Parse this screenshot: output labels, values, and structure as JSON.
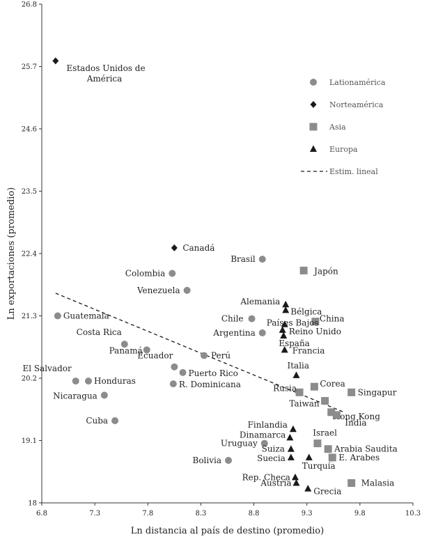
{
  "chart_data": {
    "type": "scatter",
    "title": "",
    "xlabel": "Ln distancia al país de destino (promedio)",
    "ylabel": "Ln exportaciones (promedio)",
    "xlim": [
      6.8,
      10.3
    ],
    "ylim": [
      18,
      26.8
    ],
    "xticks": [
      "6.8",
      "7.3",
      "7.8",
      "8.3",
      "8.8",
      "9.3",
      "9.8",
      "10.3"
    ],
    "yticks": [
      "18",
      "19.1",
      "20.2",
      "21.3",
      "22.4",
      "23.5",
      "24.6",
      "25.7",
      "26.8"
    ],
    "colors": {
      "latam": "#8c8c8c",
      "norte": "#1a1a1a",
      "asia": "#8c8c8c",
      "europa": "#1a1a1a",
      "trend": "#1a1a1a"
    },
    "legend": [
      {
        "name": "Lationamérica",
        "marker": "circle"
      },
      {
        "name": "Norteamérica",
        "marker": "diamond"
      },
      {
        "name": "Asia",
        "marker": "square"
      },
      {
        "name": "Europa",
        "marker": "triangle"
      },
      {
        "name": "Estim. lineal",
        "marker": "dash"
      }
    ],
    "series": [
      {
        "name": "Lationamérica",
        "marker": "circle",
        "points": [
          {
            "label": "Guatemala",
            "x": 6.95,
            "y": 21.3
          },
          {
            "label": "Costa Rica",
            "x": 7.58,
            "y": 20.8
          },
          {
            "label": "Panamá",
            "x": 7.79,
            "y": 20.7
          },
          {
            "label": "El Salvador",
            "x": 7.12,
            "y": 20.15
          },
          {
            "label": "Honduras",
            "x": 7.24,
            "y": 20.15
          },
          {
            "label": "Nicaragua",
            "x": 7.39,
            "y": 19.9
          },
          {
            "label": "Cuba",
            "x": 7.49,
            "y": 19.45
          },
          {
            "label": "Colombia",
            "x": 8.03,
            "y": 22.05
          },
          {
            "label": "Venezuela",
            "x": 8.17,
            "y": 21.75
          },
          {
            "label": "Ecuador",
            "x": 8.05,
            "y": 20.4
          },
          {
            "label": "Perú",
            "x": 8.33,
            "y": 20.6
          },
          {
            "label": "Puerto Rico",
            "x": 8.13,
            "y": 20.3
          },
          {
            "label": "R. Dominicana",
            "x": 8.04,
            "y": 20.1
          },
          {
            "label": "Brasil",
            "x": 8.88,
            "y": 22.3
          },
          {
            "label": "Chile",
            "x": 8.78,
            "y": 21.25
          },
          {
            "label": "Argentina",
            "x": 8.88,
            "y": 21.0
          },
          {
            "label": "Uruguay",
            "x": 8.9,
            "y": 19.05
          },
          {
            "label": "Bolivia",
            "x": 8.56,
            "y": 18.75
          }
        ]
      },
      {
        "name": "Norteamérica",
        "marker": "diamond",
        "points": [
          {
            "label": "Estados Unidos de América",
            "x": 6.93,
            "y": 25.8
          },
          {
            "label": "Canadá",
            "x": 8.05,
            "y": 22.5
          }
        ]
      },
      {
        "name": "Asia",
        "marker": "square",
        "points": [
          {
            "label": "Japón",
            "x": 9.27,
            "y": 22.1
          },
          {
            "label": "China",
            "x": 9.38,
            "y": 21.2
          },
          {
            "label": "Rusia",
            "x": 9.23,
            "y": 19.95
          },
          {
            "label": "Corea",
            "x": 9.37,
            "y": 20.05
          },
          {
            "label": "Singapur",
            "x": 9.72,
            "y": 19.95
          },
          {
            "label": "Taiwan",
            "x": 9.47,
            "y": 19.8
          },
          {
            "label": "Hong Kong",
            "x": 9.53,
            "y": 19.6
          },
          {
            "label": "India",
            "x": 9.58,
            "y": 19.55
          },
          {
            "label": "Israel",
            "x": 9.4,
            "y": 19.05
          },
          {
            "label": "Arabia Saudita",
            "x": 9.5,
            "y": 18.95
          },
          {
            "label": "E. Arabes",
            "x": 9.54,
            "y": 18.8
          },
          {
            "label": "Malasia",
            "x": 9.72,
            "y": 18.35
          }
        ]
      },
      {
        "name": "Europa",
        "marker": "triangle",
        "points": [
          {
            "label": "Alemania",
            "x": 9.1,
            "y": 21.5
          },
          {
            "label": "Bélgica",
            "x": 9.1,
            "y": 21.4
          },
          {
            "label": "Países Bajos",
            "x": 9.09,
            "y": 21.15
          },
          {
            "label": "Reino Unido",
            "x": 9.07,
            "y": 21.05
          },
          {
            "label": "España",
            "x": 9.08,
            "y": 20.95
          },
          {
            "label": "Francia",
            "x": 9.09,
            "y": 20.7
          },
          {
            "label": "Italia",
            "x": 9.2,
            "y": 20.25
          },
          {
            "label": "Finlandia",
            "x": 9.17,
            "y": 19.3
          },
          {
            "label": "Dinamarca",
            "x": 9.14,
            "y": 19.15
          },
          {
            "label": "Suiza",
            "x": 9.15,
            "y": 18.95
          },
          {
            "label": "Suecia",
            "x": 9.15,
            "y": 18.8
          },
          {
            "label": "Turquía",
            "x": 9.32,
            "y": 18.8
          },
          {
            "label": "Rep. Checa",
            "x": 9.19,
            "y": 18.45
          },
          {
            "label": "Austria",
            "x": 9.2,
            "y": 18.35
          },
          {
            "label": "Grecia",
            "x": 9.31,
            "y": 18.25
          }
        ]
      }
    ],
    "trendline": {
      "name": "Estim. lineal",
      "x": [
        6.93,
        9.65
      ],
      "y": [
        21.7,
        19.6
      ]
    }
  }
}
